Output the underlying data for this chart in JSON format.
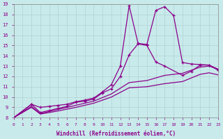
{
  "xlabel": "Windchill (Refroidissement éolien,°C)",
  "xlim": [
    0,
    23
  ],
  "ylim": [
    8,
    19
  ],
  "xticks": [
    0,
    1,
    2,
    3,
    4,
    5,
    6,
    7,
    8,
    9,
    10,
    11,
    12,
    13,
    14,
    15,
    16,
    17,
    18,
    19,
    20,
    21,
    22,
    23
  ],
  "yticks": [
    8,
    9,
    10,
    11,
    12,
    13,
    14,
    15,
    16,
    17,
    18,
    19
  ],
  "background_color": "#c8eaea",
  "line_color": "#8b008b",
  "grid_color": "#aacccc",
  "curve1_x": [
    0,
    2,
    3,
    4,
    5,
    6,
    7,
    8,
    9,
    10,
    11,
    12,
    13,
    14,
    15,
    16,
    17,
    18,
    19,
    20,
    21,
    22,
    23
  ],
  "curve1_y": [
    8.0,
    9.3,
    9.0,
    9.1,
    9.2,
    9.3,
    9.55,
    9.7,
    9.9,
    10.5,
    11.2,
    13.0,
    18.85,
    15.2,
    15.1,
    18.4,
    18.75,
    17.9,
    13.35,
    13.2,
    13.15,
    13.1,
    12.7
  ],
  "curve2_x": [
    0,
    2,
    3,
    4,
    5,
    6,
    7,
    8,
    9,
    10,
    11,
    12,
    13,
    14,
    15,
    16,
    17,
    19,
    20,
    21,
    22,
    23
  ],
  "curve2_y": [
    8.0,
    9.3,
    8.5,
    8.7,
    8.9,
    9.1,
    9.5,
    9.6,
    9.8,
    10.4,
    10.8,
    12.0,
    14.1,
    15.15,
    15.0,
    13.4,
    13.0,
    12.1,
    12.5,
    13.1,
    13.1,
    12.6
  ],
  "curve3_x": [
    0,
    2,
    3,
    5,
    7,
    9,
    11,
    13,
    15,
    17,
    19,
    21,
    22,
    23
  ],
  "curve3_y": [
    8.0,
    9.1,
    8.4,
    8.8,
    9.2,
    9.6,
    10.3,
    11.4,
    11.6,
    12.1,
    12.3,
    12.9,
    13.0,
    12.7
  ],
  "curve4_x": [
    0,
    2,
    3,
    5,
    7,
    9,
    11,
    13,
    15,
    17,
    19,
    21,
    22,
    23
  ],
  "curve4_y": [
    8.0,
    9.0,
    8.35,
    8.65,
    9.0,
    9.4,
    10.0,
    10.9,
    11.0,
    11.3,
    11.5,
    12.2,
    12.35,
    12.15
  ]
}
